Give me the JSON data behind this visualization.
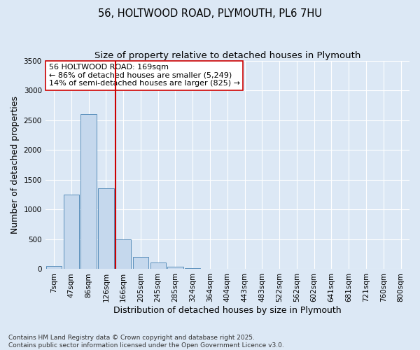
{
  "title_line1": "56, HOLTWOOD ROAD, PLYMOUTH, PL6 7HU",
  "title_line2": "Size of property relative to detached houses in Plymouth",
  "xlabel": "Distribution of detached houses by size in Plymouth",
  "ylabel": "Number of detached properties",
  "bar_labels": [
    "7sqm",
    "47sqm",
    "86sqm",
    "126sqm",
    "166sqm",
    "205sqm",
    "245sqm",
    "285sqm",
    "324sqm",
    "364sqm",
    "404sqm",
    "443sqm",
    "483sqm",
    "522sqm",
    "562sqm",
    "602sqm",
    "641sqm",
    "681sqm",
    "721sqm",
    "760sqm",
    "800sqm"
  ],
  "bar_values": [
    55,
    1250,
    2600,
    1360,
    500,
    200,
    110,
    40,
    20,
    0,
    0,
    0,
    0,
    0,
    0,
    0,
    0,
    0,
    0,
    0,
    0
  ],
  "bar_color": "#c5d8ed",
  "bar_edge_color": "#5a8fbb",
  "vline_color": "#cc0000",
  "annotation_text": "56 HOLTWOOD ROAD: 169sqm\n← 86% of detached houses are smaller (5,249)\n14% of semi-detached houses are larger (825) →",
  "annotation_box_color": "#ffffff",
  "annotation_box_edge": "#cc0000",
  "ylim": [
    0,
    3500
  ],
  "yticks": [
    0,
    500,
    1000,
    1500,
    2000,
    2500,
    3000,
    3500
  ],
  "bg_color": "#dce8f5",
  "footnote": "Contains HM Land Registry data © Crown copyright and database right 2025.\nContains public sector information licensed under the Open Government Licence v3.0.",
  "title_fontsize": 10.5,
  "subtitle_fontsize": 9.5,
  "axis_label_fontsize": 9,
  "tick_fontsize": 7.5,
  "annotation_fontsize": 8,
  "footnote_fontsize": 6.5
}
